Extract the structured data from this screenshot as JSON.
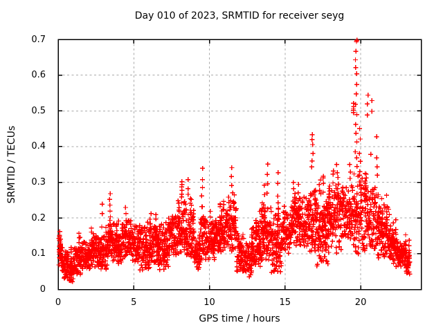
{
  "title": "Day 010 of 2023, SRMTID for receiver seyg",
  "axes": {
    "xlabel": "GPS time / hours",
    "ylabel": "SRMTID / TECUs"
  },
  "colors": {
    "background": "#ffffff",
    "points": "#ff0000",
    "grid": "#a9a9a9",
    "border": "#000000",
    "text": "#000000"
  },
  "chart_data": {
    "type": "scatter",
    "title": "Day 010 of 2023, SRMTID for receiver seyg",
    "xlabel": "GPS time / hours",
    "ylabel": "SRMTID / TECUs",
    "marker": "plus",
    "marker_color": "#ff0000",
    "marker_size": 7,
    "grid": true,
    "legend": "none",
    "xlim": [
      0,
      24
    ],
    "ylim": [
      0,
      0.7
    ],
    "x_ticks": [
      0,
      5,
      10,
      15,
      20
    ],
    "x_tick_labels": [
      "0",
      "5",
      "10",
      "15",
      "20"
    ],
    "y_ticks": [
      0,
      0.1,
      0.2,
      0.3,
      0.4,
      0.5,
      0.6,
      0.7
    ],
    "y_tick_labels": [
      "0",
      "0.1",
      "0.2",
      "0.3",
      "0.4",
      "0.5",
      "0.6",
      "0.7"
    ],
    "seed": 20230110,
    "points_per_hour": 110,
    "scatter_bands": [
      [
        0.04,
        0.3,
        0.05,
        0.145
      ],
      [
        0.3,
        0.7,
        0.03,
        0.11
      ],
      [
        0.7,
        1.1,
        0.02,
        0.09
      ],
      [
        1.1,
        1.6,
        0.04,
        0.12
      ],
      [
        1.6,
        2.1,
        0.05,
        0.135
      ],
      [
        2.1,
        2.7,
        0.06,
        0.15
      ],
      [
        2.7,
        3.3,
        0.055,
        0.15
      ],
      [
        3.3,
        3.7,
        0.07,
        0.19
      ],
      [
        3.7,
        4.2,
        0.07,
        0.16
      ],
      [
        4.2,
        4.8,
        0.08,
        0.2
      ],
      [
        4.8,
        5.4,
        0.07,
        0.18
      ],
      [
        5.4,
        6.1,
        0.05,
        0.19
      ],
      [
        6.1,
        6.7,
        0.07,
        0.18
      ],
      [
        6.7,
        7.3,
        0.05,
        0.19
      ],
      [
        7.3,
        7.9,
        0.09,
        0.21
      ],
      [
        7.9,
        8.5,
        0.1,
        0.25
      ],
      [
        8.5,
        9.0,
        0.08,
        0.22
      ],
      [
        9.0,
        9.4,
        0.05,
        0.13
      ],
      [
        9.4,
        9.8,
        0.08,
        0.2
      ],
      [
        9.8,
        10.4,
        0.08,
        0.19
      ],
      [
        10.4,
        11.1,
        0.1,
        0.21
      ],
      [
        11.1,
        11.8,
        0.1,
        0.26
      ],
      [
        11.8,
        12.3,
        0.05,
        0.16
      ],
      [
        12.3,
        12.8,
        0.03,
        0.13
      ],
      [
        12.8,
        13.4,
        0.06,
        0.18
      ],
      [
        13.4,
        14.1,
        0.08,
        0.23
      ],
      [
        14.1,
        14.8,
        0.04,
        0.21
      ],
      [
        14.8,
        15.4,
        0.1,
        0.22
      ],
      [
        15.4,
        16.4,
        0.12,
        0.26
      ],
      [
        16.4,
        17.1,
        0.1,
        0.28
      ],
      [
        17.1,
        17.9,
        0.06,
        0.28
      ],
      [
        17.9,
        18.7,
        0.1,
        0.3
      ],
      [
        18.7,
        19.5,
        0.12,
        0.29
      ],
      [
        19.5,
        20.2,
        0.1,
        0.33
      ],
      [
        20.2,
        21.0,
        0.1,
        0.29
      ],
      [
        21.0,
        21.4,
        0.08,
        0.28
      ],
      [
        21.4,
        21.9,
        0.08,
        0.24
      ],
      [
        21.9,
        22.4,
        0.06,
        0.16
      ],
      [
        22.4,
        23.0,
        0.065,
        0.13
      ],
      [
        23.0,
        23.25,
        0.04,
        0.11
      ]
    ],
    "spike_columns": [
      {
        "t": 0.15,
        "ys": [
          0.135,
          0.15
        ]
      },
      {
        "t": 2.9,
        "ys": [
          0.215,
          0.24
        ]
      },
      {
        "t": 3.45,
        "ys": [
          0.2,
          0.22,
          0.24,
          0.255,
          0.27
        ]
      },
      {
        "t": 4.45,
        "ys": [
          0.215,
          0.23
        ]
      },
      {
        "t": 6.1,
        "ys": [
          0.2,
          0.215
        ]
      },
      {
        "t": 8.2,
        "ys": [
          0.26,
          0.275,
          0.29,
          0.3
        ]
      },
      {
        "t": 8.55,
        "ys": [
          0.265,
          0.285,
          0.305
        ]
      },
      {
        "t": 9.5,
        "ys": [
          0.23,
          0.26,
          0.285,
          0.31,
          0.34
        ]
      },
      {
        "t": 10.9,
        "ys": [
          0.225,
          0.245
        ]
      },
      {
        "t": 11.5,
        "ys": [
          0.27,
          0.29,
          0.315,
          0.34
        ]
      },
      {
        "t": 11.65,
        "ys": [
          0.24,
          0.265
        ]
      },
      {
        "t": 13.6,
        "ys": [
          0.24,
          0.265,
          0.29
        ]
      },
      {
        "t": 13.85,
        "ys": [
          0.27,
          0.3,
          0.325,
          0.35
        ]
      },
      {
        "t": 14.5,
        "ys": [
          0.26,
          0.295,
          0.33
        ]
      },
      {
        "t": 15.6,
        "ys": [
          0.26,
          0.28,
          0.3
        ]
      },
      {
        "t": 16.8,
        "ys": [
          0.34,
          0.36,
          0.38,
          0.405,
          0.42,
          0.435
        ]
      },
      {
        "t": 17.3,
        "ys": [
          0.27,
          0.29,
          0.31
        ]
      },
      {
        "t": 18.15,
        "ys": [
          0.3,
          0.32,
          0.33
        ]
      },
      {
        "t": 18.45,
        "ys": [
          0.31,
          0.33,
          0.35
        ]
      },
      {
        "t": 19.3,
        "ys": [
          0.31,
          0.33,
          0.35
        ]
      },
      {
        "t": 19.55,
        "ys": [
          0.495,
          0.5,
          0.505,
          0.515,
          0.52
        ]
      },
      {
        "t": 19.7,
        "ys": [
          0.7,
          0.69,
          0.665,
          0.645,
          0.625,
          0.6,
          0.575,
          0.55,
          0.52,
          0.49,
          0.46,
          0.435,
          0.41,
          0.385,
          0.365,
          0.345
        ]
      },
      {
        "t": 19.95,
        "ys": [
          0.36,
          0.38,
          0.42,
          0.45
        ]
      },
      {
        "t": 20.45,
        "ys": [
          0.49,
          0.52,
          0.545
        ]
      },
      {
        "t": 20.7,
        "ys": [
          0.38,
          0.5,
          0.53
        ]
      },
      {
        "t": 21.1,
        "ys": [
          0.32,
          0.34,
          0.37,
          0.425
        ]
      }
    ]
  }
}
